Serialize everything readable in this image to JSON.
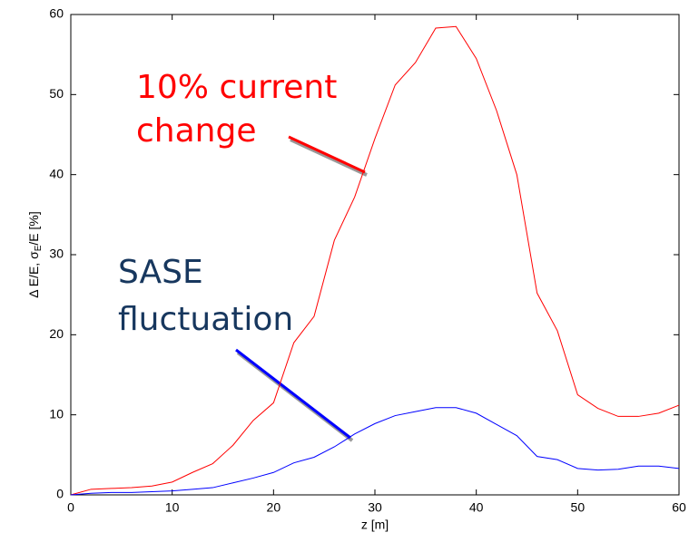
{
  "chart_data": {
    "type": "line",
    "xlabel": "z [m]",
    "ylabel": [
      "Δ E/E, σ",
      "E",
      "/E [%]"
    ],
    "annotations": [
      {
        "lines": [
          "10% current",
          "change"
        ],
        "color": "#ff0000"
      },
      {
        "lines": [
          "SASE",
          "fluctuation"
        ],
        "color": "#17375e"
      }
    ],
    "x": [
      0,
      2,
      4,
      6,
      8,
      10,
      12,
      14,
      16,
      18,
      20,
      22,
      24,
      26,
      28,
      30,
      32,
      34,
      36,
      38,
      40,
      42,
      44,
      46,
      48,
      50,
      52,
      54,
      56,
      58,
      60
    ],
    "series": [
      {
        "color": "#ff0000",
        "values": [
          0,
          0.7,
          0.8,
          0.9,
          1.1,
          1.6,
          2.8,
          3.9,
          6.2,
          9.3,
          11.5,
          19,
          22.3,
          31.8,
          37.2,
          44.5,
          51.2,
          54,
          58.3,
          58.5,
          54.5,
          48,
          40,
          25.2,
          20.5,
          12.5,
          10.8,
          9.8,
          9.8,
          10.2,
          11.2
        ]
      },
      {
        "color": "#0000ff",
        "values": [
          0,
          0.2,
          0.3,
          0.3,
          0.4,
          0.5,
          0.7,
          0.9,
          1.5,
          2.1,
          2.8,
          4,
          4.7,
          6,
          7.6,
          8.9,
          9.9,
          10.4,
          10.9,
          10.9,
          10.2,
          8.8,
          7.4,
          4.8,
          4.4,
          3.3,
          3.1,
          3.2,
          3.6,
          3.6,
          3.3
        ]
      }
    ],
    "xlim": [
      0,
      60
    ],
    "xticks": [
      0,
      10,
      20,
      30,
      40,
      50,
      60
    ],
    "ylim": [
      0,
      60
    ],
    "yticks": [
      0,
      10,
      20,
      30,
      40,
      50,
      60
    ]
  }
}
